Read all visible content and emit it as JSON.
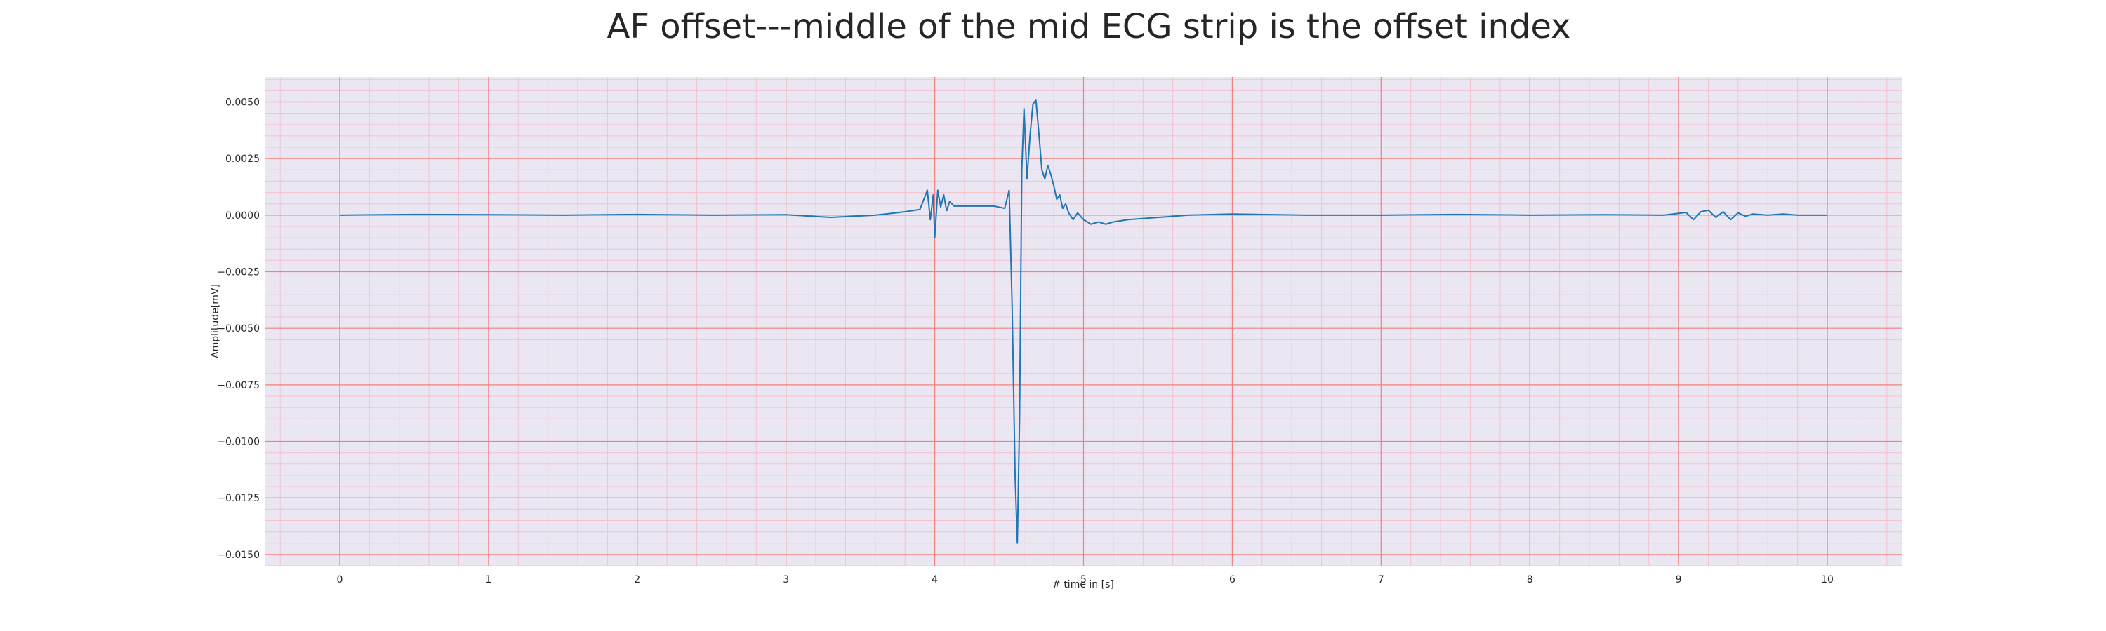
{
  "chart_data": {
    "type": "line",
    "title": "AF offset---middle of the mid ECG strip is the offset index",
    "xlabel": "# time in [s]",
    "ylabel": "Amplitude[mV]",
    "xlim": [
      -0.5,
      10.5
    ],
    "ylim": [
      -0.0155,
      0.0061
    ],
    "xticks": [
      0,
      1,
      2,
      3,
      4,
      5,
      6,
      7,
      8,
      9,
      10
    ],
    "xtick_labels": [
      "0",
      "1",
      "2",
      "3",
      "4",
      "5",
      "6",
      "7",
      "8",
      "9",
      "10"
    ],
    "yticks": [
      0.005,
      0.0025,
      0.0,
      -0.0025,
      -0.005,
      -0.0075,
      -0.01,
      -0.0125,
      -0.015
    ],
    "ytick_labels": [
      "0.0050",
      "0.0025",
      "0.0000",
      "−0.0025",
      "−0.0050",
      "−0.0075",
      "−0.0100",
      "−0.0125",
      "−0.0150"
    ],
    "grid": true,
    "minor_grid": true,
    "colors": {
      "background": "#eae6f2",
      "major_grid": "#f28080",
      "minor_grid": "#f5c2cf",
      "line": "#1f77b4"
    },
    "series": [
      {
        "x": [
          0,
          0.5,
          1.0,
          1.5,
          2.0,
          2.5,
          3.0,
          3.3,
          3.6,
          3.8,
          3.9,
          3.95,
          3.97,
          3.99,
          4.0,
          4.02,
          4.04,
          4.06,
          4.08,
          4.1,
          4.13,
          4.16,
          4.2,
          4.3,
          4.4,
          4.47,
          4.5,
          4.52,
          4.54,
          4.555,
          4.57,
          4.585,
          4.6,
          4.62,
          4.64,
          4.66,
          4.68,
          4.7,
          4.72,
          4.74,
          4.76,
          4.78,
          4.8,
          4.82,
          4.84,
          4.86,
          4.88,
          4.9,
          4.93,
          4.96,
          5.0,
          5.05,
          5.1,
          5.15,
          5.2,
          5.3,
          5.5,
          5.7,
          6.0,
          6.5,
          7.0,
          7.5,
          8.0,
          8.5,
          8.9,
          9.05,
          9.1,
          9.15,
          9.2,
          9.25,
          9.3,
          9.35,
          9.4,
          9.45,
          9.5,
          9.6,
          9.7,
          9.8,
          9.9,
          10.0
        ],
        "y": [
          0.0,
          3e-05,
          2e-05,
          0.0,
          3e-05,
          0.0,
          2e-05,
          -0.0001,
          0.0,
          0.00015,
          0.00025,
          0.0011,
          -0.0002,
          0.0009,
          -0.001,
          0.0011,
          0.00035,
          0.0009,
          0.0002,
          0.0006,
          0.0004,
          0.0004,
          0.0004,
          0.0004,
          0.0004,
          0.0003,
          0.0011,
          -0.004,
          -0.0115,
          -0.0145,
          -0.009,
          0.002,
          0.0047,
          0.0016,
          0.0035,
          0.0049,
          0.0051,
          0.0036,
          0.002,
          0.0016,
          0.0022,
          0.0018,
          0.0013,
          0.0007,
          0.0009,
          0.0003,
          0.0005,
          0.0001,
          -0.0002,
          0.0001,
          -0.0002,
          -0.0004,
          -0.0003,
          -0.0004,
          -0.0003,
          -0.0002,
          -0.0001,
          0.0,
          5e-05,
          0.0,
          0.0,
          3e-05,
          0.0,
          2e-05,
          0.0,
          0.00012,
          -0.0002,
          0.00015,
          0.00022,
          -0.0001,
          0.00015,
          -0.0002,
          0.0001,
          -5e-05,
          5e-05,
          0.0,
          5e-05,
          0.0,
          0.0,
          0.0
        ]
      }
    ]
  }
}
